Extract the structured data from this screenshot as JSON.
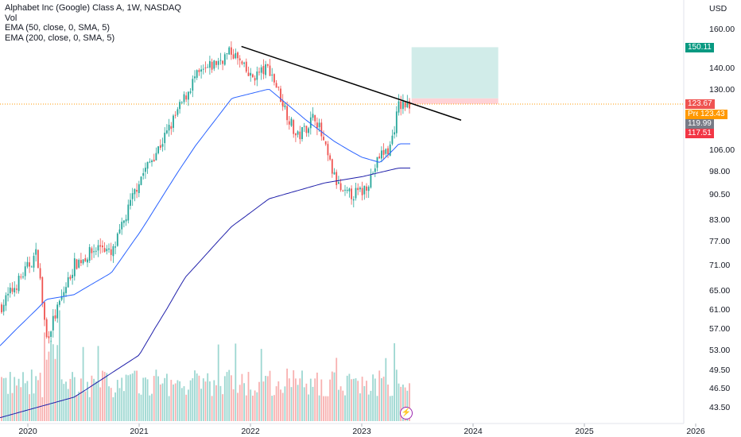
{
  "legend": {
    "title": "Alphabet Inc (Google) Class A, 1W, NASDAQ",
    "vol": "Vol",
    "ema50": "EMA (50, close, 0, SMA, 5)",
    "ema200": "EMA (200, close, 0, SMA, 5)"
  },
  "axis": {
    "currency": "USD",
    "price_ticks": [
      "160.00",
      "140.00",
      "130.00",
      "106.00",
      "98.00",
      "90.50",
      "83.00",
      "77.00",
      "71.00",
      "65.00",
      "61.00",
      "57.00",
      "53.00",
      "49.50",
      "46.50",
      "43.50"
    ],
    "year_ticks": [
      "2020",
      "2021",
      "2022",
      "2023",
      "2024",
      "2025",
      "2026"
    ]
  },
  "labels": {
    "target": "150.11",
    "last": "123.67",
    "pre_tag": "Pre",
    "pre_price": "123.43",
    "mid": "119.99",
    "stop": "117.51"
  },
  "colors": {
    "up": "#26a69a",
    "down": "#ef5350",
    "ema50": "#2962ff",
    "ema200": "#1f1faa",
    "target_zone": "#b2dfdb",
    "stop_zone": "#ffcdd2",
    "trendline": "#000000",
    "last_price": "#ef5350",
    "pre": "#ff9800",
    "mid": "#787b86",
    "target_label": "#089981"
  },
  "icons": {
    "bolt": "lightning-bolt-icon",
    "bolt_glyph": "⚡"
  },
  "chart_data": {
    "type": "candlestick",
    "symbol": "Alphabet Inc (Google) Class A",
    "interval": "1W",
    "exchange": "NASDAQ",
    "price_scale": "log",
    "ylim": [
      40,
      170
    ],
    "x_range": [
      "2019-09",
      "2026-01"
    ],
    "price_anchors": [
      {
        "date": "2019-09",
        "price": 58.5
      },
      {
        "date": "2019-12",
        "price": 67
      },
      {
        "date": "2020-02",
        "price": 74
      },
      {
        "date": "2020-03",
        "price": 55
      },
      {
        "date": "2020-06",
        "price": 71
      },
      {
        "date": "2020-09",
        "price": 76
      },
      {
        "date": "2020-10",
        "price": 73
      },
      {
        "date": "2021-01",
        "price": 95
      },
      {
        "date": "2021-04",
        "price": 112
      },
      {
        "date": "2021-07",
        "price": 135
      },
      {
        "date": "2021-11",
        "price": 148
      },
      {
        "date": "2022-01",
        "price": 135
      },
      {
        "date": "2022-03",
        "price": 140
      },
      {
        "date": "2022-06",
        "price": 110
      },
      {
        "date": "2022-08",
        "price": 119
      },
      {
        "date": "2022-10",
        "price": 96
      },
      {
        "date": "2022-11",
        "price": 90
      },
      {
        "date": "2023-01",
        "price": 91
      },
      {
        "date": "2023-02",
        "price": 96
      },
      {
        "date": "2023-03",
        "price": 104
      },
      {
        "date": "2023-04",
        "price": 106
      },
      {
        "date": "2023-05",
        "price": 123
      }
    ],
    "ema50": [
      {
        "date": "2019-09",
        "price": 52
      },
      {
        "date": "2020-03",
        "price": 63
      },
      {
        "date": "2020-06",
        "price": 64
      },
      {
        "date": "2020-10",
        "price": 69
      },
      {
        "date": "2021-01",
        "price": 79
      },
      {
        "date": "2021-07",
        "price": 107
      },
      {
        "date": "2021-11",
        "price": 126
      },
      {
        "date": "2022-03",
        "price": 130
      },
      {
        "date": "2022-07",
        "price": 117
      },
      {
        "date": "2022-10",
        "price": 109
      },
      {
        "date": "2023-01",
        "price": 103
      },
      {
        "date": "2023-03",
        "price": 101
      },
      {
        "date": "2023-05",
        "price": 108
      }
    ],
    "ema200": [
      {
        "date": "2019-09",
        "price": 41.5
      },
      {
        "date": "2020-06",
        "price": 45
      },
      {
        "date": "2021-01",
        "price": 52
      },
      {
        "date": "2021-06",
        "price": 68
      },
      {
        "date": "2021-11",
        "price": 81
      },
      {
        "date": "2022-03",
        "price": 89
      },
      {
        "date": "2022-09",
        "price": 94
      },
      {
        "date": "2023-01",
        "price": 96
      },
      {
        "date": "2023-05",
        "price": 99
      }
    ],
    "trendline": [
      {
        "date": "2021-11",
        "price": 150.5
      },
      {
        "date": "2023-10",
        "price": 117
      }
    ],
    "position": {
      "type": "long",
      "from": "2023-05",
      "to": "2024-02",
      "entry": 119.99,
      "target": 150.11,
      "stop": 117.51
    },
    "last_price": 123.67,
    "premarket_price": 123.43
  }
}
